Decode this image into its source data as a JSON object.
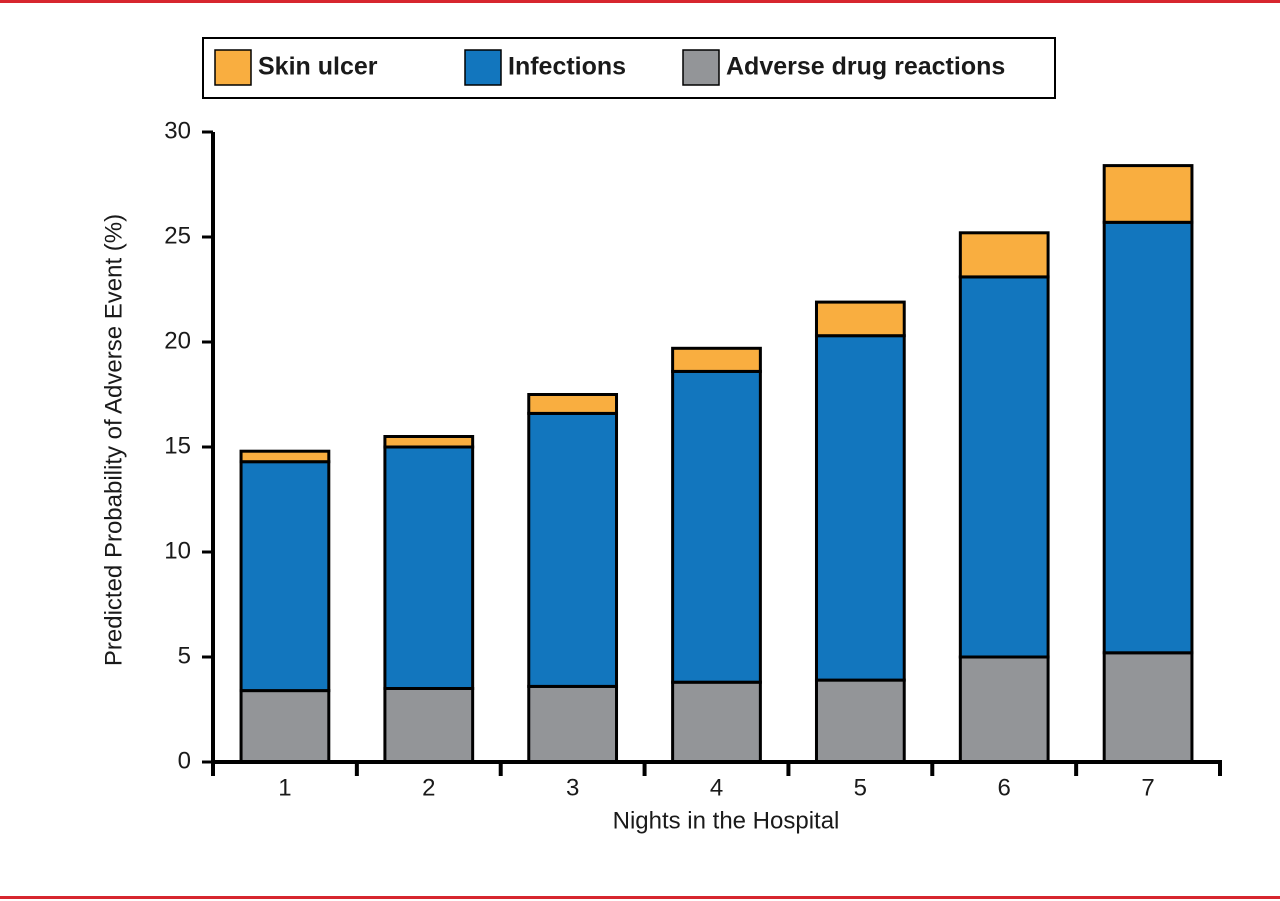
{
  "chart_data": {
    "type": "stacked_bar",
    "x_label": "Nights in the Hospital",
    "y_label": "Predicted Probability of Adverse Event (%)",
    "categories": [
      "1",
      "2",
      "3",
      "4",
      "5",
      "6",
      "7"
    ],
    "series": [
      {
        "name": "Skin ulcer",
        "color": "#f9ae40",
        "values": [
          0.5,
          0.5,
          0.9,
          1.1,
          1.6,
          2.1,
          2.7
        ]
      },
      {
        "name": "Infections",
        "color": "#1276be",
        "values": [
          10.9,
          11.5,
          13.0,
          14.8,
          16.4,
          18.1,
          20.5
        ]
      },
      {
        "name": "Adverse drug reactions",
        "color": "#939598",
        "values": [
          3.4,
          3.5,
          3.6,
          3.8,
          3.9,
          5.0,
          5.2
        ]
      }
    ],
    "ylim": [
      0,
      30
    ],
    "yticks": [
      0,
      5,
      10,
      15,
      20,
      25,
      30
    ]
  }
}
